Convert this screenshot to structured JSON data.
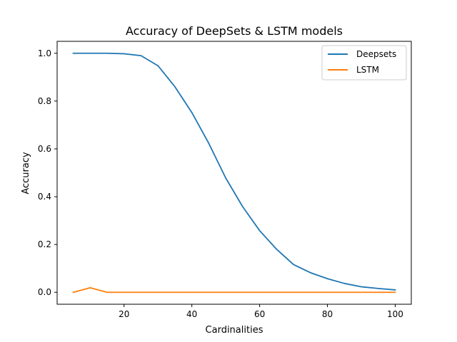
{
  "chart_data": {
    "type": "line",
    "title": "Accuracy of DeepSets & LSTM models",
    "xlabel": "Cardinalities",
    "ylabel": "Accuracy",
    "xlim": [
      0.25,
      104.75
    ],
    "ylim": [
      -0.05,
      1.05
    ],
    "xticks": [
      20,
      40,
      60,
      80,
      100
    ],
    "yticks": [
      0.0,
      0.2,
      0.4,
      0.6,
      0.8,
      1.0
    ],
    "ytick_labels": [
      "0.0",
      "0.2",
      "0.4",
      "0.6",
      "0.8",
      "1.0"
    ],
    "x": [
      5,
      10,
      15,
      20,
      25,
      30,
      35,
      40,
      45,
      50,
      55,
      60,
      65,
      70,
      75,
      80,
      85,
      90,
      95,
      100
    ],
    "series": [
      {
        "name": "Deepsets",
        "color": "#1f77b4",
        "values": [
          1.0,
          1.0,
          1.0,
          0.998,
          0.99,
          0.948,
          0.86,
          0.752,
          0.623,
          0.478,
          0.358,
          0.258,
          0.18,
          0.116,
          0.082,
          0.057,
          0.037,
          0.023,
          0.016,
          0.01
        ]
      },
      {
        "name": "LSTM",
        "color": "#ff7f0e",
        "values": [
          0.0,
          0.019,
          0.0,
          0.0,
          0.0,
          0.0,
          0.0,
          0.0,
          0.0,
          0.0,
          0.0,
          0.0,
          0.0,
          0.0,
          0.0,
          0.0,
          0.0,
          0.0,
          0.0,
          0.0
        ]
      }
    ],
    "legend_position": "top-right"
  }
}
